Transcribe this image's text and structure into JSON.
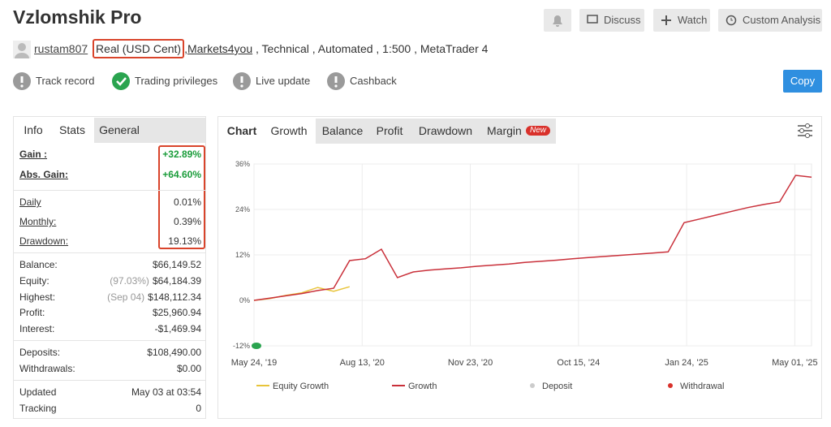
{
  "header": {
    "title": "Vzlomshik Pro",
    "buttons": [
      "Discuss",
      "Watch",
      "Custom Analysis"
    ]
  },
  "account": {
    "user": "rustam807",
    "type": "Real (USD Cent)",
    "separator": ",",
    "broker": "Markets4you",
    "details": ", Technical , Automated , 1:500 , MetaTrader 4"
  },
  "badges": [
    {
      "label": "Track record",
      "status": "warning"
    },
    {
      "label": "Trading privileges",
      "status": "ok"
    },
    {
      "label": "Live update",
      "status": "warning"
    },
    {
      "label": "Cashback",
      "status": "warning"
    }
  ],
  "copy_button": "Copy",
  "stats": {
    "tabs": [
      "Info",
      "Stats",
      "General"
    ],
    "groups": [
      [
        {
          "label": "Gain :",
          "value": "+32.89%",
          "color": "#1a9c3a"
        },
        {
          "label": "Abs. Gain:",
          "value": "+64.60%",
          "color": "#1a9c3a"
        }
      ],
      [
        {
          "label": "Daily",
          "value": "0.01%"
        },
        {
          "label": "Monthly:",
          "value": "0.39%"
        },
        {
          "label": "Drawdown:",
          "value": "19.13%"
        }
      ],
      [
        {
          "label": "Balance:",
          "value": "$66,149.52"
        },
        {
          "label": "Equity:",
          "note": "(97.03%)",
          "value": "$64,184.39"
        },
        {
          "label": "Highest:",
          "note": "(Sep 04)",
          "value": "$148,112.34"
        },
        {
          "label": "Profit:",
          "value": "$25,960.94"
        },
        {
          "label": "Interest:",
          "value": "-$1,469.94"
        }
      ],
      [
        {
          "label": "Deposits:",
          "value": "$108,490.00"
        },
        {
          "label": "Withdrawals:",
          "value": "$0.00"
        }
      ],
      [
        {
          "label": "Updated",
          "value": "May 03 at 03:54"
        },
        {
          "label": "Tracking",
          "value": "0"
        }
      ]
    ]
  },
  "chart_panel": {
    "tabs": [
      "Chart",
      "Growth",
      "Balance",
      "Profit",
      "Drawdown",
      "Margin"
    ],
    "new_badge": "New",
    "chart_data": {
      "type": "line",
      "ylim": [
        -12,
        36
      ],
      "yticks": [
        {
          "value": 36,
          "label": "36%"
        },
        {
          "value": 24,
          "label": "24%"
        },
        {
          "value": 12,
          "label": "12%"
        },
        {
          "value": 0,
          "label": "0%"
        },
        {
          "value": -12,
          "label": "-12%"
        }
      ],
      "xtick_labels": [
        "May 24, '19",
        "Aug 13, '20",
        "Nov 23, '20",
        "Oct 15, '24",
        "Jan 24, '25",
        "May 01, '25"
      ],
      "grid": true,
      "series": [
        {
          "name": "Equity Growth",
          "color": "#e8c43a",
          "values": [
            0,
            0.5,
            1.3,
            2,
            3.4,
            2.4,
            3.6,
            null,
            null,
            null,
            null,
            null,
            null,
            null,
            null,
            null,
            null,
            null,
            null,
            null,
            null,
            null,
            null,
            null,
            null,
            null,
            null,
            null,
            null,
            null,
            null,
            null,
            null,
            null,
            null,
            null
          ]
        },
        {
          "name": "Growth",
          "color": "#c9303a",
          "values": [
            0,
            0.6,
            1.2,
            1.8,
            2.6,
            3.2,
            10.5,
            11,
            13.5,
            6,
            7.5,
            8,
            8.3,
            8.6,
            9,
            9.3,
            9.6,
            10,
            10.3,
            10.6,
            11,
            11.3,
            11.6,
            11.9,
            12.2,
            12.5,
            12.8,
            20.5,
            21.5,
            22.5,
            23.5,
            24.5,
            25.3,
            26,
            33,
            32.5
          ]
        }
      ],
      "markers": [
        {
          "name": "Deposit",
          "color": "#cccccc"
        },
        {
          "name": "Withdrawal",
          "color": "#d9312b"
        }
      ]
    }
  }
}
